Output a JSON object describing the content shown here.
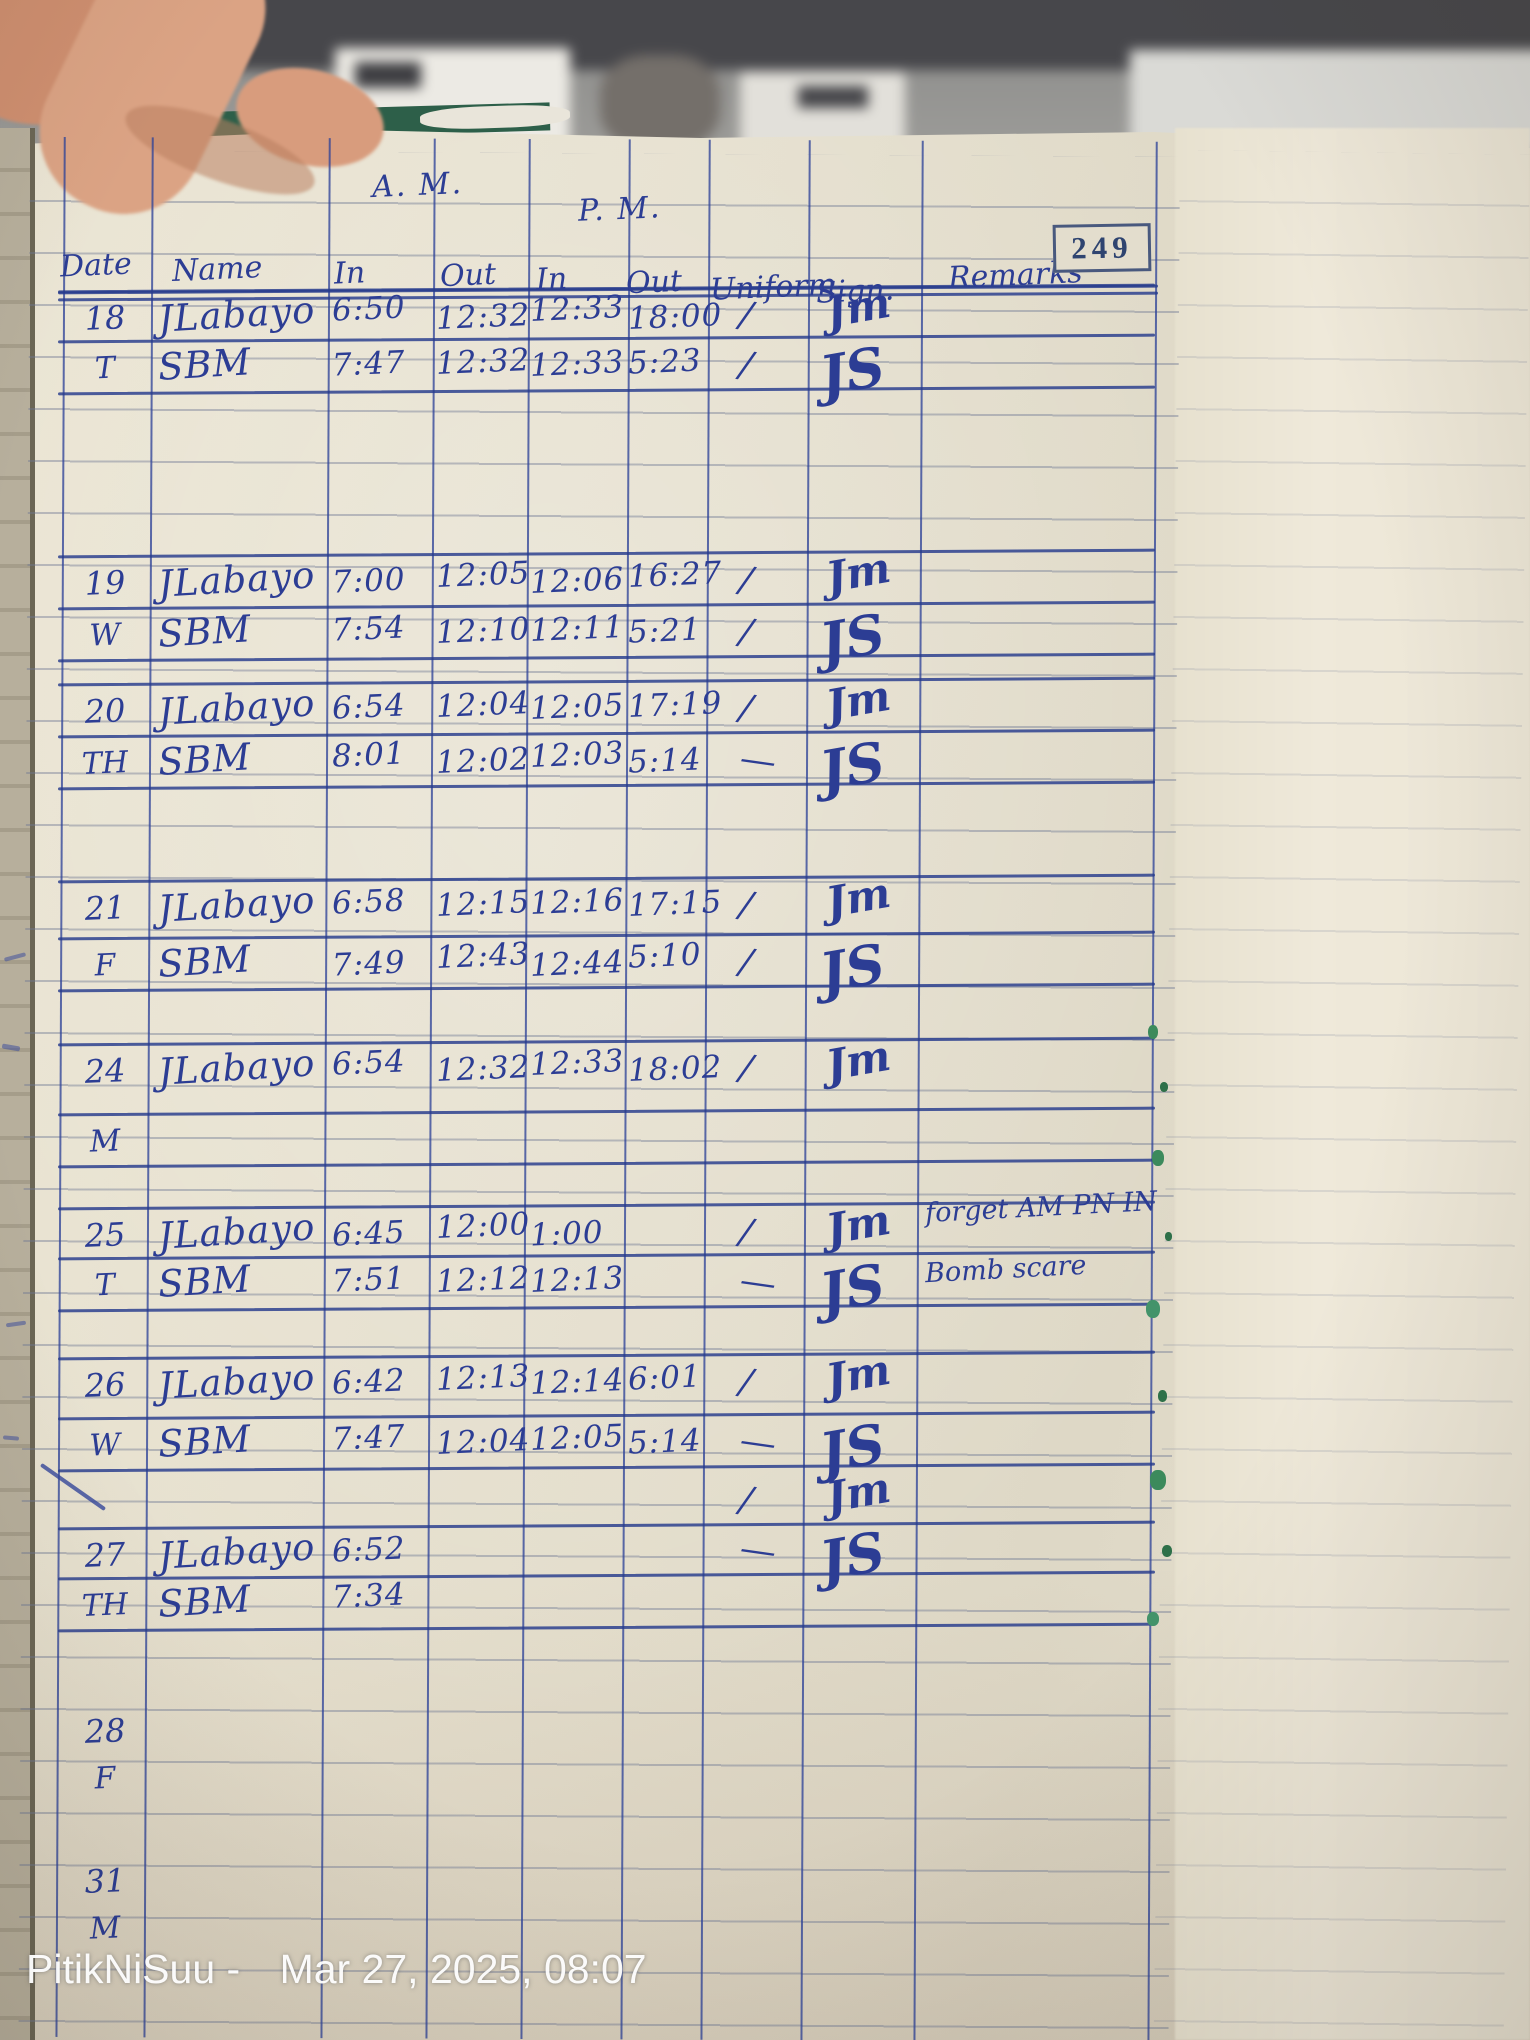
{
  "photo": {
    "watermark": {
      "handle": "PitikNiSuu -",
      "timestamp": "Mar 27, 2025, 08:07"
    }
  },
  "page": {
    "number": "249",
    "section_headers": {
      "am": "A. M.",
      "pm": "P. M."
    },
    "columns": {
      "date": "Date",
      "name": "Name",
      "am_in": "In",
      "am_out": "Out",
      "pm_in": "In",
      "pm_out": "Out",
      "uniform": "Uniform",
      "sign": "Sign.",
      "remarks": "Remarks"
    },
    "blocks": [
      {
        "date": "18",
        "day": "T",
        "rows": [
          {
            "name": "JLabayo",
            "am_in": "6:50",
            "am_out": "12:32",
            "pm_in": "12:33",
            "pm_out": "18:00",
            "uniform": "/",
            "sign": "Jm"
          },
          {
            "name": "SBM",
            "am_in": "7:47",
            "am_out": "12:32",
            "pm_in": "12:33",
            "pm_out": "5:23",
            "uniform": "/",
            "sign": "JS"
          }
        ],
        "remarks": []
      },
      {
        "date": "19",
        "day": "W",
        "rows": [
          {
            "name": "JLabayo",
            "am_in": "7:00",
            "am_out": "12:05",
            "pm_in": "12:06",
            "pm_out": "16:27",
            "uniform": "/",
            "sign": "Jm"
          },
          {
            "name": "SBM",
            "am_in": "7:54",
            "am_out": "12:10",
            "pm_in": "12:11",
            "pm_out": "5:21",
            "uniform": "/",
            "sign": "JS"
          }
        ],
        "remarks": []
      },
      {
        "date": "20",
        "day": "TH",
        "rows": [
          {
            "name": "JLabayo",
            "am_in": "6:54",
            "am_out": "12:04",
            "pm_in": "12:05",
            "pm_out": "17:19",
            "uniform": "/",
            "sign": "Jm"
          },
          {
            "name": "SBM",
            "am_in": "8:01",
            "am_out": "12:02",
            "pm_in": "12:03",
            "pm_out": "5:14",
            "uniform": "—",
            "sign": "JS"
          }
        ],
        "remarks": []
      },
      {
        "date": "21",
        "day": "F",
        "rows": [
          {
            "name": "JLabayo",
            "am_in": "6:58",
            "am_out": "12:15",
            "pm_in": "12:16",
            "pm_out": "17:15",
            "uniform": "/",
            "sign": "Jm"
          },
          {
            "name": "SBM",
            "am_in": "7:49",
            "am_out": "12:43",
            "pm_in": "12:44",
            "pm_out": "5:10",
            "uniform": "/",
            "sign": "JS"
          }
        ],
        "remarks": []
      },
      {
        "date": "24",
        "day": "M",
        "rows": [
          {
            "name": "JLabayo",
            "am_in": "6:54",
            "am_out": "12:32",
            "pm_in": "12:33",
            "pm_out": "18:02",
            "uniform": "/",
            "sign": "Jm"
          }
        ],
        "remarks": []
      },
      {
        "date": "25",
        "day": "T",
        "rows": [
          {
            "name": "JLabayo",
            "am_in": "6:45",
            "am_out": "12:00",
            "pm_in": "1:00",
            "pm_out": "",
            "uniform": "/",
            "sign": "Jm"
          },
          {
            "name": "SBM",
            "am_in": "7:51",
            "am_out": "12:12",
            "pm_in": "12:13",
            "pm_out": "",
            "uniform": "—",
            "sign": "JS"
          }
        ],
        "remarks": [
          "forget AM PN IN",
          "Bomb scare"
        ]
      },
      {
        "date": "26",
        "day": "W",
        "rows": [
          {
            "name": "JLabayo",
            "am_in": "6:42",
            "am_out": "12:13",
            "pm_in": "12:14",
            "pm_out": "6:01",
            "uniform": "/",
            "sign": "Jm"
          },
          {
            "name": "SBM",
            "am_in": "7:47",
            "am_out": "12:04",
            "pm_in": "12:05",
            "pm_out": "5:14",
            "uniform": "—",
            "sign": "JS"
          }
        ],
        "remarks": []
      },
      {
        "date": "27",
        "day": "TH",
        "rows": [
          {
            "name": "JLabayo",
            "am_in": "6:52",
            "am_out": "",
            "pm_in": "",
            "pm_out": "",
            "uniform": "/",
            "sign": "Jm"
          },
          {
            "name": "SBM",
            "am_in": "7:34",
            "am_out": "",
            "pm_in": "",
            "pm_out": "",
            "uniform": "—",
            "sign": "JS"
          }
        ],
        "remarks": []
      },
      {
        "date": "28",
        "day": "F",
        "rows": [],
        "remarks": []
      },
      {
        "date": "31",
        "day": "M",
        "rows": [],
        "remarks": []
      }
    ]
  }
}
